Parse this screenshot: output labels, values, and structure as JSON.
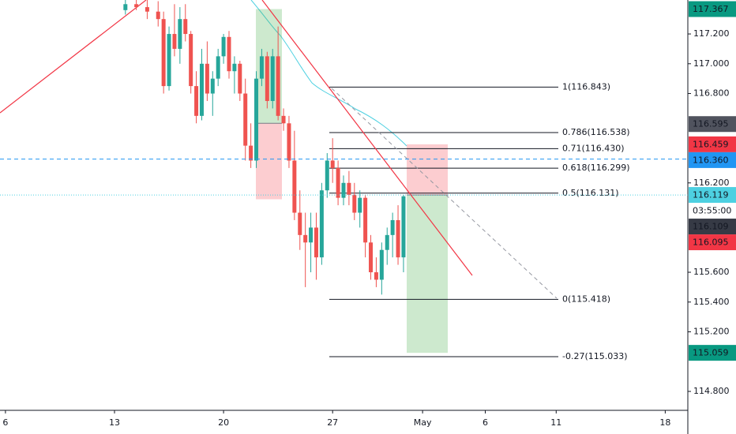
{
  "chart_data": {
    "type": "candlestick",
    "xlim": [
      0,
      126
    ],
    "ylim": [
      114.673,
      117.428
    ],
    "xticks": [
      {
        "value": 1,
        "label": "6"
      },
      {
        "value": 21,
        "label": "13"
      },
      {
        "value": 41,
        "label": "20"
      },
      {
        "value": 61,
        "label": "27"
      },
      {
        "value": 77.5,
        "label": "May"
      },
      {
        "value": 89,
        "label": "6"
      },
      {
        "value": 102,
        "label": "11"
      },
      {
        "value": 122,
        "label": "18"
      }
    ],
    "yticks": [
      {
        "value": 117.2,
        "label": "117.200"
      },
      {
        "value": 117.0,
        "label": "117.000"
      },
      {
        "value": 116.8,
        "label": "116.800"
      },
      {
        "value": 116.2,
        "label": "116.200"
      },
      {
        "value": 115.6,
        "label": "115.600"
      },
      {
        "value": 115.4,
        "label": "115.400"
      },
      {
        "value": 115.2,
        "label": "115.200"
      },
      {
        "value": 114.8,
        "label": "114.800"
      }
    ],
    "up_color": "#26a69a",
    "down_color": "#ef5350",
    "x": [
      23,
      25,
      27,
      29,
      30,
      31,
      32,
      33,
      34,
      35,
      36,
      37,
      38,
      39,
      40,
      41,
      42,
      43,
      44,
      45,
      46,
      47,
      48,
      49,
      50,
      51,
      52,
      53,
      54,
      55,
      56,
      57,
      58,
      59,
      60,
      61,
      62,
      63,
      64,
      65,
      66,
      67,
      68,
      69,
      70,
      71,
      72,
      73,
      74
    ],
    "open": [
      117.36,
      117.4,
      117.38,
      117.35,
      117.3,
      116.85,
      117.2,
      117.1,
      117.3,
      117.2,
      116.85,
      116.65,
      117.0,
      116.8,
      116.9,
      117.05,
      117.18,
      116.95,
      117.0,
      116.8,
      116.45,
      116.35,
      116.9,
      117.05,
      116.75,
      117.05,
      116.65,
      116.6,
      116.35,
      116.0,
      115.85,
      115.8,
      115.9,
      115.7,
      116.15,
      116.35,
      116.3,
      116.1,
      116.2,
      116.12,
      116.0,
      116.1,
      115.8,
      115.6,
      115.55,
      115.75,
      115.85,
      115.95,
      115.7
    ],
    "high": [
      117.45,
      117.45,
      117.45,
      117.42,
      117.35,
      117.25,
      117.4,
      117.38,
      117.4,
      117.22,
      116.95,
      117.1,
      117.15,
      116.95,
      117.1,
      117.2,
      117.22,
      117.05,
      117.02,
      116.9,
      116.6,
      116.95,
      117.1,
      117.08,
      117.1,
      117.25,
      116.7,
      116.65,
      116.55,
      116.15,
      116.0,
      116.0,
      116.0,
      116.2,
      116.4,
      116.5,
      116.35,
      116.25,
      116.28,
      116.2,
      116.15,
      116.12,
      115.85,
      115.7,
      115.8,
      115.9,
      116.0,
      116.05,
      116.12
    ],
    "low": [
      117.33,
      117.36,
      117.3,
      117.25,
      116.8,
      116.82,
      117.05,
      117.0,
      117.15,
      116.8,
      116.6,
      116.62,
      116.75,
      116.65,
      116.85,
      117.0,
      116.9,
      116.8,
      116.75,
      116.35,
      116.3,
      116.3,
      116.85,
      116.7,
      116.7,
      116.62,
      116.55,
      116.3,
      115.95,
      115.75,
      115.5,
      115.6,
      115.55,
      115.65,
      116.1,
      116.2,
      116.05,
      116.05,
      116.05,
      115.95,
      115.9,
      115.7,
      115.55,
      115.5,
      115.45,
      115.65,
      115.7,
      115.65,
      115.6
    ],
    "close": [
      117.4,
      117.38,
      117.35,
      117.3,
      116.85,
      117.2,
      117.1,
      117.3,
      117.2,
      116.85,
      116.65,
      117.0,
      116.8,
      116.9,
      117.05,
      117.18,
      116.95,
      117.0,
      116.8,
      116.45,
      116.35,
      116.9,
      117.05,
      116.75,
      117.05,
      116.65,
      116.6,
      116.35,
      116.0,
      115.85,
      115.8,
      115.9,
      115.7,
      116.15,
      116.35,
      116.3,
      116.1,
      116.2,
      116.12,
      116.0,
      116.1,
      115.8,
      115.6,
      115.55,
      115.75,
      115.85,
      115.95,
      115.7,
      116.11
    ],
    "fib_levels": [
      {
        "value": 116.843,
        "label": "1(116.843)"
      },
      {
        "value": 116.538,
        "label": "0.786(116.538)"
      },
      {
        "value": 116.43,
        "label": "0.71(116.430)"
      },
      {
        "value": 116.299,
        "label": "0.618(116.299)"
      },
      {
        "value": 116.131,
        "label": "0.5(116.131)"
      },
      {
        "value": 115.418,
        "label": "0(115.418)"
      },
      {
        "value": 115.033,
        "label": "-0.27(115.033)"
      }
    ],
    "positions": [
      {
        "entry": 116.6,
        "stop": 116.09,
        "target": 117.367
      },
      {
        "entry": 116.119,
        "stop": 116.459,
        "target": 115.059
      }
    ],
    "price_labels": [
      {
        "value": 117.367,
        "label": "117.367",
        "color": "#089981"
      },
      {
        "value": 116.595,
        "label": "116.595",
        "color": "#50535e"
      },
      {
        "value": 116.459,
        "label": "116.459",
        "color": "#f23645"
      },
      {
        "value": 116.36,
        "label": "116.360",
        "color": "#2196f3"
      },
      {
        "value": 116.119,
        "label": "116.119",
        "color": "#4dd0e1"
      },
      {
        "value": 116.109,
        "label": "116.109",
        "color": "#363a45"
      },
      {
        "value": 116.095,
        "label": "116.095",
        "color": "#f23645"
      },
      {
        "value": 115.059,
        "label": "115.059",
        "color": "#089981"
      }
    ],
    "countdown": "03:55:00"
  }
}
